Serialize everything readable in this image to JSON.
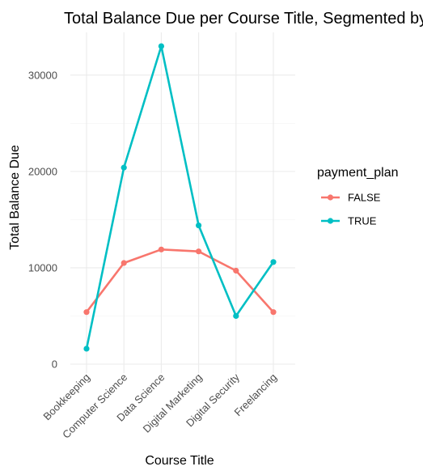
{
  "chart_data": {
    "type": "line",
    "title": "Total Balance Due per Course Title, Segmented by Payment Plan",
    "xlabel": "Course Title",
    "ylabel": "Total Balance Due",
    "categories": [
      "Bookkeeping",
      "Computer Science",
      "Data Science",
      "Digital Marketing",
      "Digital Security",
      "Freelancing"
    ],
    "series": [
      {
        "name": "FALSE",
        "color": "#F8766D",
        "values": [
          5400,
          10500,
          11900,
          11700,
          9700,
          5400
        ]
      },
      {
        "name": "TRUE",
        "color": "#00BFC4",
        "values": [
          1600,
          20400,
          33000,
          14400,
          5000,
          10600
        ]
      }
    ],
    "ylim": [
      0,
      34000
    ],
    "yticks": [
      0,
      10000,
      20000,
      30000
    ],
    "ytick_labels": [
      "0",
      "10000",
      "20000",
      "30000"
    ],
    "grid": true,
    "legend": {
      "title": "payment_plan",
      "position": "right"
    }
  }
}
